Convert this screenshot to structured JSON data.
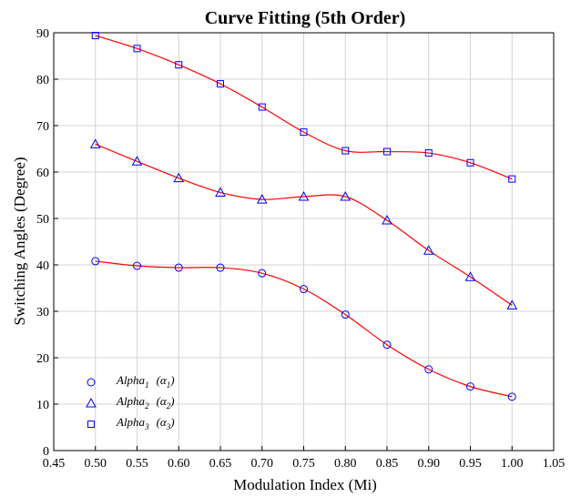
{
  "chart_data": {
    "type": "scatter",
    "title": "Curve Fitting (5th Order)",
    "xlabel": "Modulation Index (Mi)",
    "ylabel": "Switching Angles (Degree)",
    "xlim": [
      0.45,
      1.05
    ],
    "ylim": [
      0,
      90
    ],
    "xticks": [
      "0.45",
      "0.50",
      "0.55",
      "0.60",
      "0.65",
      "0.70",
      "0.75",
      "0.80",
      "0.85",
      "0.90",
      "0.95",
      "1.00",
      "1.05"
    ],
    "yticks": [
      "0",
      "10",
      "20",
      "30",
      "40",
      "50",
      "60",
      "70",
      "80",
      "90"
    ],
    "grid": true,
    "legend_position": "bottom-left",
    "marker_color": "#0000ff",
    "fit_color": "#ff0000",
    "x": [
      0.5,
      0.55,
      0.6,
      0.65,
      0.7,
      0.75,
      0.8,
      0.85,
      0.9,
      0.95,
      1.0
    ],
    "series": [
      {
        "name": "Alpha",
        "subscript": "1",
        "symbol": "α",
        "marker": "circle",
        "values": [
          40.8,
          39.8,
          39.4,
          39.4,
          38.2,
          34.8,
          29.3,
          22.8,
          17.5,
          13.8,
          11.6
        ]
      },
      {
        "name": "Alpha",
        "subscript": "2",
        "symbol": "α",
        "marker": "triangle",
        "values": [
          66.0,
          62.3,
          58.7,
          55.6,
          54.1,
          54.7,
          54.7,
          49.6,
          43.1,
          37.4,
          31.3
        ]
      },
      {
        "name": "Alpha",
        "subscript": "3",
        "symbol": "α",
        "marker": "square",
        "values": [
          89.4,
          86.6,
          83.1,
          79.0,
          74.0,
          68.6,
          64.6,
          64.4,
          64.1,
          62.0,
          58.5
        ]
      }
    ]
  }
}
